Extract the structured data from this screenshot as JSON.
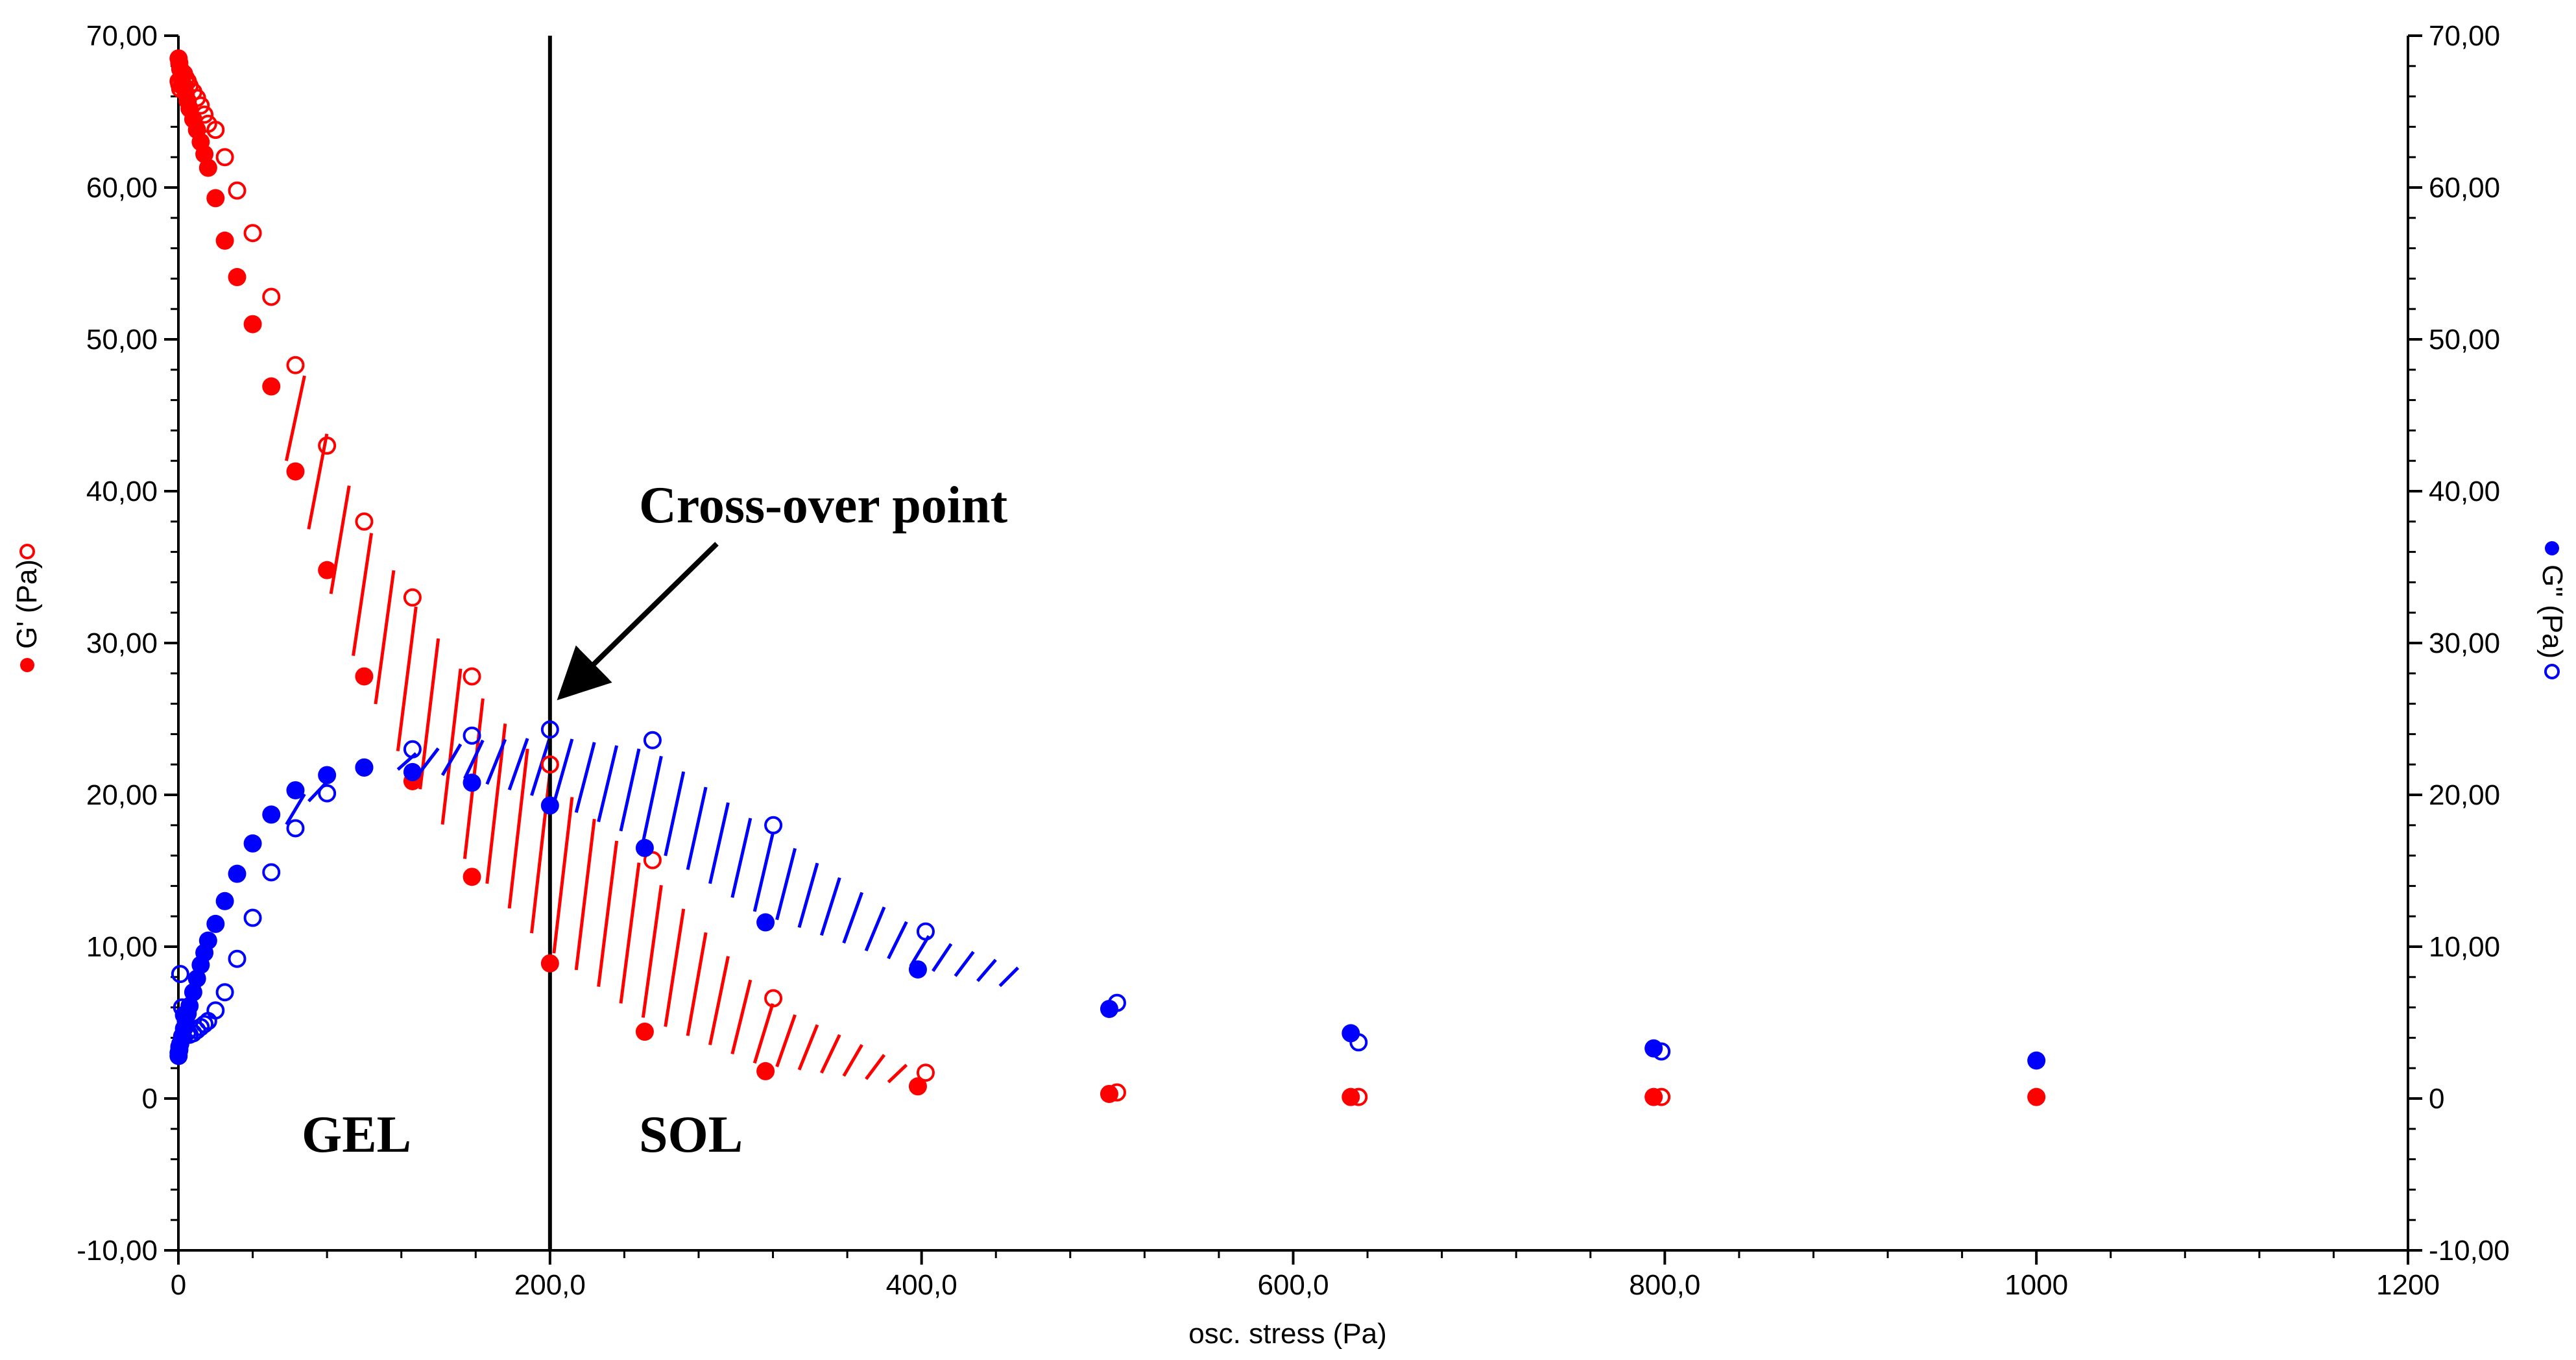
{
  "colors": {
    "g_prime": "#ff0000",
    "g_double_prime": "#0000ff",
    "axis": "#000000"
  },
  "chart_data": {
    "type": "scatter",
    "xlabel": "osc. stress (Pa)",
    "ylabel_left": "G' (Pa)",
    "ylabel_right": "G\" (Pa)",
    "xlim": [
      0,
      1200
    ],
    "ylim": [
      -10,
      70
    ],
    "x_ticks": [
      0,
      200,
      400,
      600,
      800,
      1000,
      1200
    ],
    "x_tick_labels": [
      "0",
      "200,0",
      "400,0",
      "600,0",
      "800,0",
      "1000",
      "1200"
    ],
    "y_ticks": [
      -10,
      0,
      10,
      20,
      30,
      40,
      50,
      60,
      70
    ],
    "y_tick_labels": [
      "-10,00",
      "0",
      "10,00",
      "20,00",
      "30,00",
      "40,00",
      "50,00",
      "60,00",
      "70,00"
    ],
    "series": [
      {
        "name": "G'",
        "marker": "filled",
        "color": "red",
        "x": [
          0.1,
          0.5,
          1,
          2,
          3,
          4,
          5,
          6,
          8,
          10,
          12,
          14,
          16,
          20,
          25,
          31.6,
          40,
          50,
          63,
          80,
          100,
          126,
          158,
          200,
          251,
          316,
          398,
          501,
          631,
          794,
          1000
        ],
        "y": [
          68.5,
          68.2,
          67.8,
          67.3,
          66.7,
          66.2,
          65.7,
          65.2,
          64.5,
          63.8,
          63.0,
          62.2,
          61.3,
          59.3,
          56.5,
          54.1,
          51.0,
          46.9,
          41.3,
          34.8,
          27.8,
          20.9,
          14.6,
          8.9,
          4.4,
          1.8,
          0.8,
          0.3,
          0.1,
          0.1,
          0.1
        ]
      },
      {
        "name": "G'",
        "marker": "open",
        "color": "red",
        "x": [
          0.1,
          0.5,
          1,
          2,
          3,
          4,
          5,
          6,
          8,
          10,
          12,
          14,
          16,
          20,
          25,
          31.6,
          40,
          50,
          63,
          80,
          100,
          126,
          158,
          200,
          251,
          316,
          398,
          501,
          631,
          794,
          1000
        ],
        "y": [
          67.0,
          66.8,
          66.5,
          66.8,
          67.5,
          67.2,
          67.0,
          66.7,
          66.3,
          65.9,
          65.4,
          64.8,
          64.2,
          63.8,
          62.0,
          59.8,
          57.0,
          52.8,
          48.3,
          43.0,
          38.0,
          33.0,
          27.8,
          22.0,
          15.7,
          6.6,
          1.7,
          0.4,
          0.1,
          0.1,
          null
        ]
      },
      {
        "name": "G\"",
        "marker": "filled",
        "color": "blue",
        "x": [
          0.1,
          0.5,
          1,
          2,
          3,
          4,
          5,
          6,
          8,
          10,
          12,
          14,
          16,
          20,
          25,
          31.6,
          40,
          50,
          63,
          80,
          100,
          126,
          158,
          200,
          251,
          316,
          398,
          501,
          631,
          794,
          1000
        ],
        "y": [
          2.8,
          3.2,
          3.6,
          4.1,
          4.6,
          5.1,
          5.6,
          6.1,
          7.0,
          7.9,
          8.8,
          9.6,
          10.4,
          11.5,
          13.0,
          14.8,
          16.8,
          18.7,
          20.3,
          21.3,
          21.8,
          21.5,
          20.8,
          19.3,
          16.5,
          11.6,
          8.5,
          5.9,
          4.3,
          3.3,
          2.5
        ]
      },
      {
        "name": "G\"",
        "marker": "open",
        "color": "blue",
        "x": [
          0.1,
          0.5,
          1,
          2,
          3,
          4,
          5,
          6,
          8,
          10,
          12,
          14,
          16,
          20,
          25,
          31.6,
          40,
          50,
          63,
          80,
          100,
          126,
          158,
          200,
          251,
          316,
          398,
          501,
          631,
          794,
          1000
        ],
        "y": [
          3.0,
          3.4,
          8.2,
          6.0,
          5.5,
          4.8,
          4.4,
          4.2,
          4.3,
          4.5,
          4.7,
          4.9,
          5.1,
          5.8,
          7.0,
          9.2,
          11.9,
          14.9,
          17.8,
          20.1,
          21.8,
          23.0,
          23.9,
          24.3,
          23.6,
          18.0,
          11.0,
          6.3,
          3.7,
          3.1,
          null
        ]
      }
    ],
    "annotations": [
      {
        "text": "Cross-over point",
        "arrow_to": [
          200,
          24.3
        ]
      },
      {
        "text": "GEL"
      },
      {
        "text": "SOL"
      }
    ],
    "vertical_line_x": 200,
    "hatched_regions": [
      {
        "color": "red",
        "between": "G' filled and G' open"
      },
      {
        "color": "blue",
        "between": "G\" filled and G\" open"
      }
    ],
    "grid": false,
    "legend": "axis titles left and right"
  }
}
